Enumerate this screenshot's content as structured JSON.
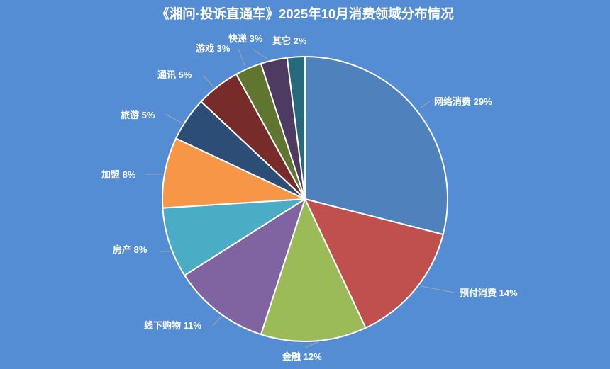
{
  "title": "《湘问·投诉直通车》2025年10月消费领域分布情况",
  "colors": {
    "background": "#548dd4",
    "slice_border": "#ffffff",
    "leader_line": "#a6a6a6",
    "label_text": "#ffffff"
  },
  "chart_data": {
    "type": "pie",
    "title": "《湘问·投诉直通车》2025年10月消费领域分布情况",
    "start_angle": "12 o'clock, clockwise",
    "categories": [
      "网络消费",
      "预付消费",
      "金融",
      "线下购物",
      "房产",
      "加盟",
      "旅游",
      "通讯",
      "游戏",
      "快递",
      "其它"
    ],
    "values": [
      29,
      14,
      12,
      11,
      8,
      8,
      5,
      5,
      3,
      3,
      2
    ],
    "unit": "%",
    "slice_colors": [
      "#4f81bd",
      "#c0504d",
      "#9bbb59",
      "#8064a2",
      "#4bacc6",
      "#f79646",
      "#2c4d75",
      "#772c2a",
      "#5f7530",
      "#4d3b62",
      "#276a7c"
    ],
    "labels": [
      "网络消费 29%",
      "预付消费 14%",
      "金融 12%",
      "线下购物 11%",
      "房产 8%",
      "加盟 8%",
      "旅游 5%",
      "通讯 5%",
      "游戏 3%",
      "快递 3%",
      "其它 2%"
    ],
    "legend": "none (data labels with leader lines)"
  }
}
